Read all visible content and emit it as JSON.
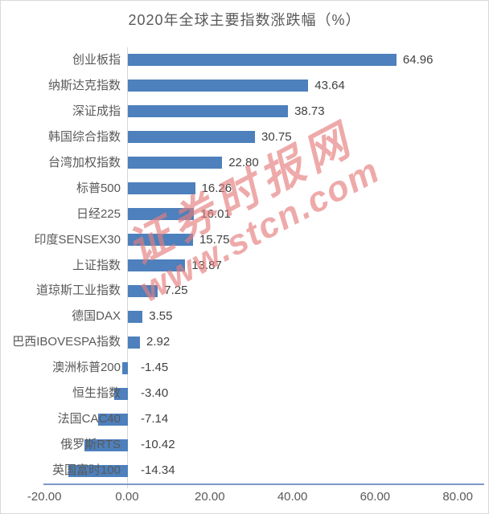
{
  "title": "2020年全球主要指数涨跌幅（%）",
  "watermark": {
    "line1": "证券时报网",
    "line2": "www.stcn.com",
    "color": "#e57e7e"
  },
  "colors": {
    "bar": "#4d80bc",
    "value_axis_line": "#7b9ac8",
    "category_axis_line": "#d6d6d6",
    "title_text": "#595959",
    "category_text": "#595959",
    "value_text": "#404040",
    "frame_border": "#d9d9d9"
  },
  "chart_data": {
    "type": "bar",
    "orientation": "horizontal",
    "title": "2020年全球主要指数涨跌幅（%）",
    "categories": [
      "创业板指",
      "纳斯达克指数",
      "深证成指",
      "韩国综合指数",
      "台湾加权指数",
      "标普500",
      "日经225",
      "印度SENSEX30",
      "上证指数",
      "道琼斯工业指数",
      "德国DAX",
      "巴西IBOVESPA指数",
      "澳洲标普200",
      "恒生指数",
      "法国CAC40",
      "俄罗斯RTS",
      "英国富时100"
    ],
    "values": [
      64.96,
      43.64,
      38.73,
      30.75,
      22.8,
      16.26,
      16.01,
      15.75,
      13.87,
      7.25,
      3.55,
      2.92,
      -1.45,
      -3.4,
      -7.14,
      -10.42,
      -14.34
    ],
    "xlabel": "",
    "ylabel": "",
    "xlim": [
      -20,
      80
    ],
    "x_ticks": [
      -20,
      0,
      20,
      40,
      60,
      80
    ],
    "x_tick_labels": [
      "-20.00",
      "0.00",
      "20.00",
      "40.00",
      "60.00",
      "80.00"
    ],
    "value_labels_decimals": 2,
    "grid": false,
    "legend": "none"
  }
}
